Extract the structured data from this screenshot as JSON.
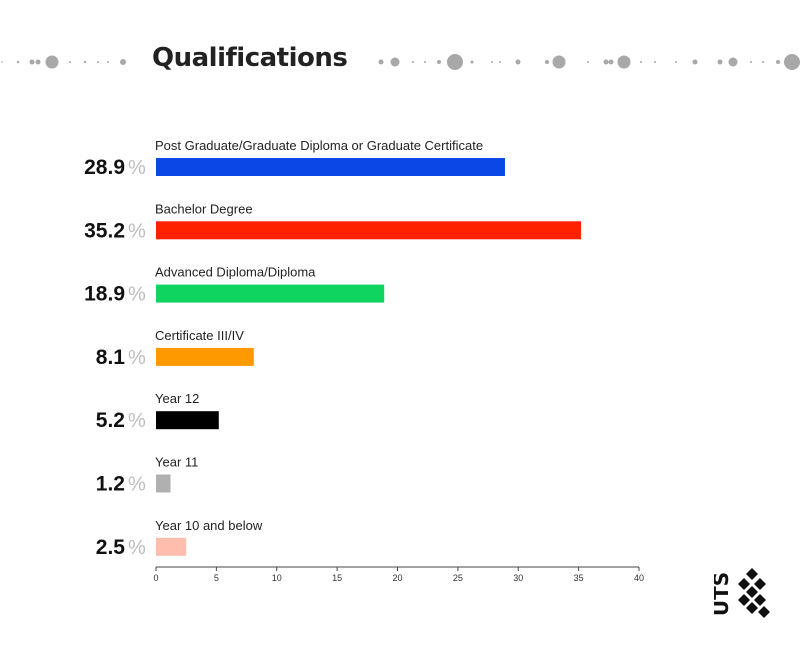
{
  "title": "Qualifications",
  "chart_data": {
    "type": "bar",
    "orientation": "horizontal",
    "categories": [
      "Post Graduate/Graduate Diploma or Graduate Certificate",
      "Bachelor Degree",
      "Advanced Diploma/Diploma",
      "Certificate III/IV",
      "Year 12",
      "Year 11",
      "Year 10 and below"
    ],
    "values": [
      28.9,
      35.2,
      18.9,
      8.1,
      5.2,
      1.2,
      2.5
    ],
    "value_labels": [
      "28.9",
      "35.2",
      "18.9",
      "8.1",
      "5.2",
      "1.2",
      "2.5"
    ],
    "value_suffix": "%",
    "colors": [
      "#0b46e6",
      "#ff2200",
      "#0fd45f",
      "#ff9900",
      "#000000",
      "#b0b0b0",
      "#ffbdae"
    ],
    "xlim": [
      0,
      40
    ],
    "xticks": [
      "0",
      "5",
      "10",
      "15",
      "20",
      "25",
      "30",
      "35",
      "40"
    ],
    "grid": false,
    "legend": "none"
  },
  "logo": {
    "text": "UTS"
  }
}
